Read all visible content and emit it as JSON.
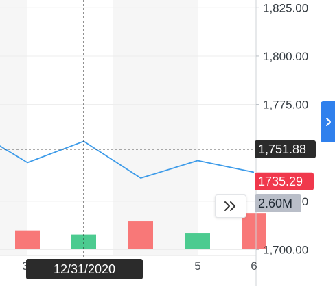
{
  "chart_data": {
    "type": "line",
    "y_axis": {
      "ticks": [
        "1,825.00",
        "1,800.00",
        "1,775.00",
        "1,725.00",
        "1,700.00"
      ],
      "range": [
        1697,
        1829
      ],
      "side": "right"
    },
    "x_axis": {
      "ticks": [
        "3",
        "5",
        "6"
      ]
    },
    "series": [
      {
        "values": [
          1763,
          1745,
          1756,
          1737,
          1746,
          1740
        ],
        "color": "#3d9be9"
      }
    ],
    "volume": {
      "values": [
        1.55,
        1.2,
        2.35,
        1.35,
        3.05
      ],
      "colors": [
        "#f87878",
        "#4ccb90",
        "#f87878",
        "#4ccb90",
        "#f87878"
      ],
      "unit": "M"
    },
    "crosshair": {
      "price_label": "1,751.88",
      "date_label": "12/31/2020",
      "price": 1751.88
    },
    "last_price": {
      "label": "1735.29",
      "value": 1735.29,
      "color": "#f0384c"
    },
    "volume_label": "2.60M",
    "grid": true
  },
  "controls": {
    "side_tab_icon": "chevron-right-icon",
    "jump_button_icon": "double-chevron-right-icon"
  }
}
